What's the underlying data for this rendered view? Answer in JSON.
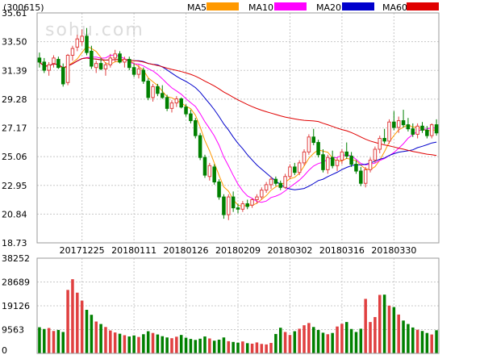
{
  "chart_data": {
    "type": "candlestick",
    "ticker": "(300615)",
    "watermark": "sohu.com",
    "legend": [
      {
        "name": "MA5",
        "color": "#ff9900"
      },
      {
        "name": "MA10",
        "color": "#ff00ff"
      },
      {
        "name": "MA20",
        "color": "#0000cc"
      },
      {
        "name": "MA60",
        "color": "#e00000"
      }
    ],
    "price_axis": {
      "ylim": [
        18.73,
        35.61
      ],
      "ticks": [
        "35.61",
        "33.50",
        "31.39",
        "29.28",
        "27.17",
        "25.06",
        "22.95",
        "20.84",
        "18.73"
      ]
    },
    "volume_axis": {
      "ylim": [
        0,
        38252
      ],
      "ticks": [
        "38252",
        "28689",
        "19126",
        "9563",
        "0"
      ]
    },
    "x_labels": [
      {
        "text": "20171225",
        "index": 9
      },
      {
        "text": "20180111",
        "index": 20
      },
      {
        "text": "20180126",
        "index": 31
      },
      {
        "text": "20180209",
        "index": 42
      },
      {
        "text": "20180302",
        "index": 53
      },
      {
        "text": "20180316",
        "index": 64
      },
      {
        "text": "20180330",
        "index": 75
      }
    ],
    "up_color": "#e04040",
    "down_color": "#008000",
    "candles": [
      [
        32.3,
        32.7,
        31.6,
        32.0
      ],
      [
        32.0,
        32.3,
        31.2,
        31.4
      ],
      [
        31.4,
        32.0,
        31.0,
        31.8
      ],
      [
        31.9,
        32.5,
        31.6,
        32.3
      ],
      [
        32.2,
        32.4,
        31.5,
        31.6
      ],
      [
        31.6,
        31.9,
        30.2,
        30.4
      ],
      [
        30.5,
        32.6,
        30.3,
        32.5
      ],
      [
        32.5,
        33.2,
        32.1,
        33.0
      ],
      [
        33.1,
        34.0,
        32.8,
        33.7
      ],
      [
        33.5,
        34.4,
        33.2,
        33.9
      ],
      [
        33.9,
        34.5,
        32.5,
        32.7
      ],
      [
        32.8,
        33.2,
        31.5,
        31.7
      ],
      [
        31.6,
        32.1,
        31.2,
        31.9
      ],
      [
        31.9,
        32.3,
        31.4,
        31.5
      ],
      [
        31.5,
        32.0,
        31.0,
        31.8
      ],
      [
        31.8,
        32.6,
        31.6,
        32.3
      ],
      [
        32.3,
        32.9,
        32.0,
        32.6
      ],
      [
        32.6,
        32.8,
        31.9,
        32.0
      ],
      [
        32.0,
        32.4,
        31.6,
        32.2
      ],
      [
        32.2,
        32.4,
        31.4,
        31.6
      ],
      [
        31.6,
        31.9,
        30.9,
        31.1
      ],
      [
        31.1,
        31.8,
        30.8,
        31.5
      ],
      [
        31.4,
        31.6,
        30.4,
        30.6
      ],
      [
        30.6,
        30.8,
        29.2,
        29.4
      ],
      [
        29.4,
        30.4,
        29.1,
        30.2
      ],
      [
        30.2,
        30.4,
        29.5,
        29.7
      ],
      [
        29.7,
        30.3,
        29.3,
        29.4
      ],
      [
        29.4,
        29.6,
        28.4,
        28.6
      ],
      [
        28.6,
        29.2,
        28.3,
        29.0
      ],
      [
        29.0,
        29.5,
        28.7,
        29.3
      ],
      [
        29.3,
        29.4,
        28.6,
        28.7
      ],
      [
        28.7,
        28.9,
        28.0,
        28.2
      ],
      [
        28.2,
        28.5,
        27.5,
        27.7
      ],
      [
        27.7,
        27.9,
        26.4,
        26.6
      ],
      [
        26.6,
        26.8,
        24.8,
        25.0
      ],
      [
        25.0,
        25.2,
        23.5,
        23.7
      ],
      [
        23.6,
        24.6,
        23.3,
        24.4
      ],
      [
        24.3,
        24.5,
        23.0,
        23.2
      ],
      [
        23.2,
        23.4,
        21.9,
        22.1
      ],
      [
        22.1,
        22.3,
        20.5,
        20.8
      ],
      [
        20.8,
        22.3,
        20.4,
        22.1
      ],
      [
        22.1,
        22.5,
        21.0,
        21.3
      ],
      [
        21.3,
        21.6,
        20.9,
        21.2
      ],
      [
        21.2,
        21.8,
        21.0,
        21.6
      ],
      [
        21.6,
        21.9,
        21.2,
        21.4
      ],
      [
        21.5,
        22.0,
        21.3,
        21.9
      ],
      [
        21.9,
        22.3,
        21.6,
        22.1
      ],
      [
        22.1,
        22.8,
        21.9,
        22.6
      ],
      [
        22.6,
        23.2,
        22.4,
        23.0
      ],
      [
        23.0,
        23.6,
        22.7,
        23.4
      ],
      [
        23.4,
        23.6,
        22.9,
        23.1
      ],
      [
        23.1,
        23.3,
        22.6,
        22.8
      ],
      [
        22.8,
        23.8,
        22.7,
        23.6
      ],
      [
        23.6,
        24.5,
        23.4,
        24.3
      ],
      [
        24.3,
        24.6,
        23.7,
        23.9
      ],
      [
        23.9,
        24.8,
        23.7,
        24.6
      ],
      [
        24.6,
        25.6,
        24.4,
        25.4
      ],
      [
        25.4,
        26.7,
        25.2,
        26.5
      ],
      [
        26.5,
        27.1,
        25.9,
        26.1
      ],
      [
        26.1,
        26.3,
        25.0,
        25.2
      ],
      [
        25.2,
        25.6,
        23.9,
        24.1
      ],
      [
        24.1,
        25.2,
        23.8,
        25.0
      ],
      [
        25.0,
        25.5,
        24.2,
        24.4
      ],
      [
        24.4,
        25.0,
        24.0,
        24.8
      ],
      [
        24.8,
        25.6,
        24.5,
        25.4
      ],
      [
        25.4,
        26.1,
        24.9,
        25.1
      ],
      [
        25.1,
        25.4,
        24.3,
        24.5
      ],
      [
        24.5,
        24.8,
        23.8,
        24.0
      ],
      [
        24.0,
        24.3,
        22.9,
        23.1
      ],
      [
        23.1,
        24.3,
        22.8,
        24.1
      ],
      [
        24.1,
        25.0,
        23.9,
        24.8
      ],
      [
        24.8,
        25.8,
        24.6,
        25.6
      ],
      [
        25.6,
        26.6,
        25.3,
        26.4
      ],
      [
        26.4,
        27.1,
        26.0,
        26.2
      ],
      [
        26.2,
        27.8,
        26.0,
        27.6
      ],
      [
        27.6,
        28.4,
        27.0,
        27.2
      ],
      [
        27.2,
        28.0,
        26.8,
        27.7
      ],
      [
        27.7,
        28.5,
        27.2,
        27.4
      ],
      [
        27.4,
        27.9,
        26.9,
        27.1
      ],
      [
        27.1,
        27.5,
        26.5,
        26.7
      ],
      [
        26.7,
        27.5,
        26.4,
        27.3
      ],
      [
        27.3,
        27.6,
        26.8,
        27.0
      ],
      [
        27.0,
        27.3,
        26.4,
        26.6
      ],
      [
        26.6,
        27.5,
        26.4,
        27.4
      ],
      [
        27.4,
        27.8,
        26.6,
        26.8
      ]
    ],
    "volumes": [
      10500,
      9800,
      10200,
      9000,
      9400,
      8600,
      25500,
      29800,
      24400,
      21200,
      17500,
      15500,
      12800,
      11800,
      10600,
      9200,
      8400,
      7900,
      7300,
      6800,
      7200,
      6600,
      7700,
      8900,
      8200,
      7600,
      6900,
      6400,
      6100,
      6700,
      7400,
      6300,
      5800,
      5400,
      5900,
      6800,
      6000,
      5100,
      5500,
      6400,
      4900,
      4600,
      4300,
      4800,
      4100,
      3900,
      4400,
      3800,
      3600,
      4200,
      7800,
      10300,
      8600,
      7400,
      8900,
      9900,
      11300,
      12200,
      10600,
      9400,
      8300,
      7700,
      8200,
      10800,
      11900,
      12600,
      9800,
      8600,
      9900,
      21900,
      12600,
      14600,
      23500,
      23600,
      19200,
      18600,
      15600,
      13200,
      11800,
      10400,
      9500,
      9000,
      8200,
      7600,
      9300
    ]
  }
}
